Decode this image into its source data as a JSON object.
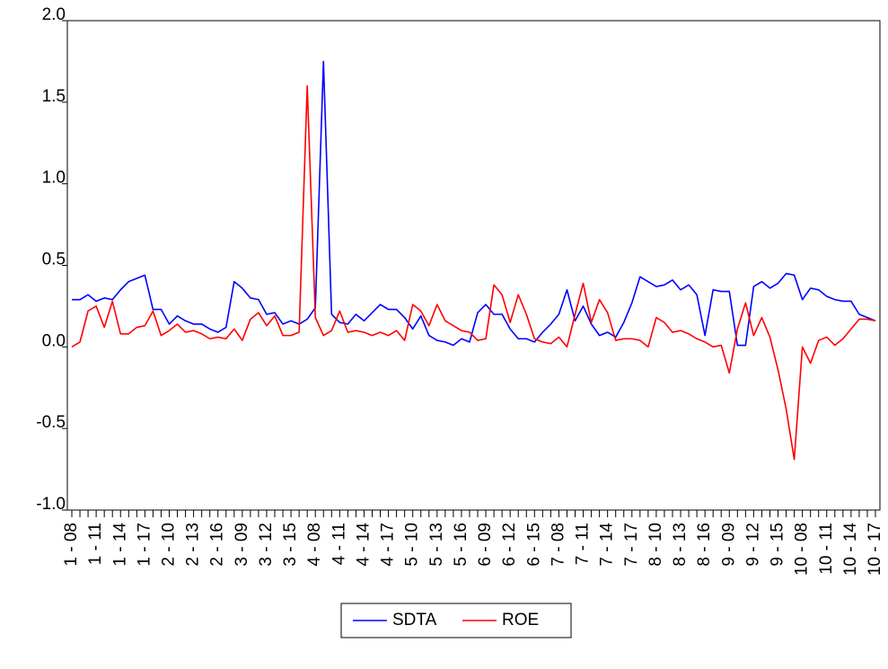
{
  "chart_data": {
    "type": "line",
    "categories": [
      "1 - 08",
      null,
      null,
      "1 - 11",
      null,
      null,
      "1 - 14",
      null,
      null,
      "1 - 17",
      null,
      null,
      "2 - 10",
      null,
      null,
      "2 - 13",
      null,
      null,
      "2 - 16",
      null,
      null,
      "3 - 09",
      null,
      null,
      "3 - 12",
      null,
      null,
      "3 - 15",
      null,
      null,
      "4 - 08",
      null,
      null,
      "4 - 11",
      null,
      null,
      "4 - 14",
      null,
      null,
      "4 - 17",
      null,
      null,
      "5 - 10",
      null,
      null,
      "5 - 13",
      null,
      null,
      "5 - 16",
      null,
      null,
      "6 - 09",
      null,
      null,
      "6 - 12",
      null,
      null,
      "6 - 15",
      null,
      null,
      "7 - 08",
      null,
      null,
      "7 - 11",
      null,
      null,
      "7 - 14",
      null,
      null,
      "7 - 17",
      null,
      null,
      "8 - 10",
      null,
      null,
      "8 - 13",
      null,
      null,
      "8 - 16",
      null,
      null,
      "9 - 09",
      null,
      null,
      "9 - 12",
      null,
      null,
      "9 - 15",
      null,
      null,
      "10 - 08",
      null,
      null,
      "10 - 11",
      null,
      null,
      "10 - 14",
      null,
      null,
      "10 - 17"
    ],
    "series": [
      {
        "name": "SDTA",
        "color": "#0000ff",
        "values": [
          0.29,
          0.29,
          0.32,
          0.28,
          0.3,
          0.29,
          0.35,
          0.4,
          0.42,
          0.44,
          0.23,
          0.23,
          0.14,
          0.19,
          0.16,
          0.14,
          0.14,
          0.11,
          0.09,
          0.12,
          0.4,
          0.36,
          0.3,
          0.29,
          0.2,
          0.21,
          0.14,
          0.16,
          0.14,
          0.17,
          0.24,
          1.75,
          0.2,
          0.15,
          0.14,
          0.2,
          0.16,
          0.21,
          0.26,
          0.23,
          0.23,
          0.18,
          0.11,
          0.19,
          0.07,
          0.04,
          0.03,
          0.01,
          0.05,
          0.03,
          0.21,
          0.26,
          0.2,
          0.2,
          0.11,
          0.05,
          0.05,
          0.03,
          0.09,
          0.14,
          0.2,
          0.35,
          0.16,
          0.25,
          0.14,
          0.07,
          0.09,
          0.06,
          0.15,
          0.27,
          0.43,
          0.4,
          0.37,
          0.38,
          0.41,
          0.35,
          0.38,
          0.32,
          0.07,
          0.35,
          0.34,
          0.34,
          0.01,
          0.01,
          0.37,
          0.4,
          0.36,
          0.39,
          0.45,
          0.44,
          0.29,
          0.36,
          0.35,
          0.31,
          0.29,
          0.28,
          0.28,
          0.2,
          0.18,
          0.16
        ]
      },
      {
        "name": "ROE",
        "color": "#ff0000",
        "values": [
          0.0,
          0.03,
          0.22,
          0.25,
          0.12,
          0.28,
          0.08,
          0.08,
          0.12,
          0.13,
          0.22,
          0.07,
          0.1,
          0.14,
          0.09,
          0.1,
          0.08,
          0.05,
          0.06,
          0.05,
          0.11,
          0.04,
          0.17,
          0.21,
          0.13,
          0.19,
          0.07,
          0.07,
          0.09,
          1.6,
          0.18,
          0.07,
          0.1,
          0.22,
          0.09,
          0.1,
          0.09,
          0.07,
          0.09,
          0.07,
          0.1,
          0.04,
          0.26,
          0.22,
          0.13,
          0.26,
          0.16,
          0.13,
          0.1,
          0.09,
          0.04,
          0.05,
          0.38,
          0.32,
          0.15,
          0.32,
          0.2,
          0.05,
          0.03,
          0.02,
          0.06,
          0.0,
          0.2,
          0.39,
          0.15,
          0.29,
          0.21,
          0.04,
          0.05,
          0.05,
          0.04,
          0.0,
          0.18,
          0.15,
          0.09,
          0.1,
          0.08,
          0.05,
          0.03,
          0.0,
          0.01,
          -0.16,
          0.11,
          0.27,
          0.07,
          0.18,
          0.06,
          -0.14,
          -0.38,
          -0.69,
          0.0,
          -0.1,
          0.04,
          0.06,
          0.01,
          0.05,
          0.11,
          0.17,
          0.17,
          0.16
        ]
      }
    ],
    "ylim": [
      -1.0,
      2.0
    ],
    "yticks": [
      {
        "value": -1.0,
        "label": "-1.0"
      },
      -0.5,
      {
        "value": 0.0,
        "label": "0.0"
      },
      0.5,
      {
        "value": 1.0,
        "label": "1.0"
      },
      1.5,
      {
        "value": 2.0,
        "label": "2.0"
      }
    ],
    "grid": false
  }
}
